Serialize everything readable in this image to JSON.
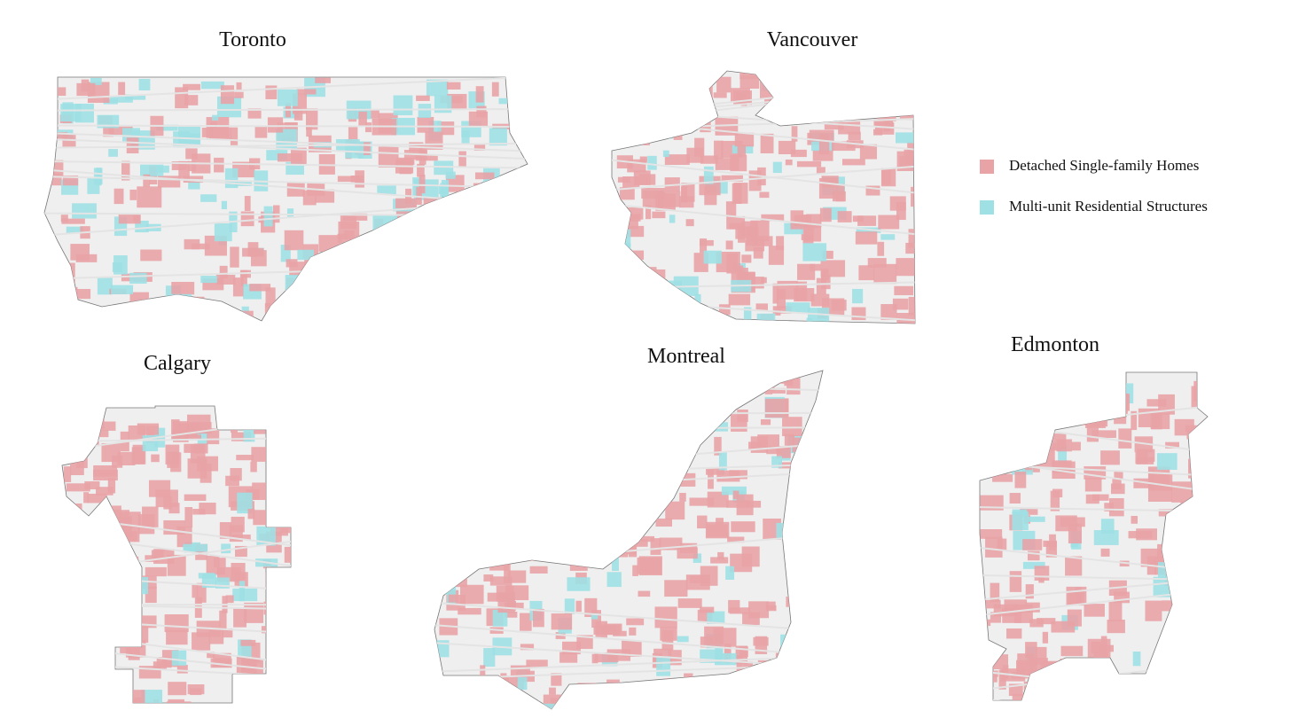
{
  "maps": [
    {
      "title": "Toronto"
    },
    {
      "title": "Vancouver"
    },
    {
      "title": "Calgary"
    },
    {
      "title": "Montreal"
    },
    {
      "title": "Edmonton"
    }
  ],
  "legend": {
    "items": [
      {
        "label": "Detached Single-family Homes",
        "color": "#e8a3a6"
      },
      {
        "label": "Multi-unit Residential Structures",
        "color": "#9fe0e4"
      }
    ]
  }
}
